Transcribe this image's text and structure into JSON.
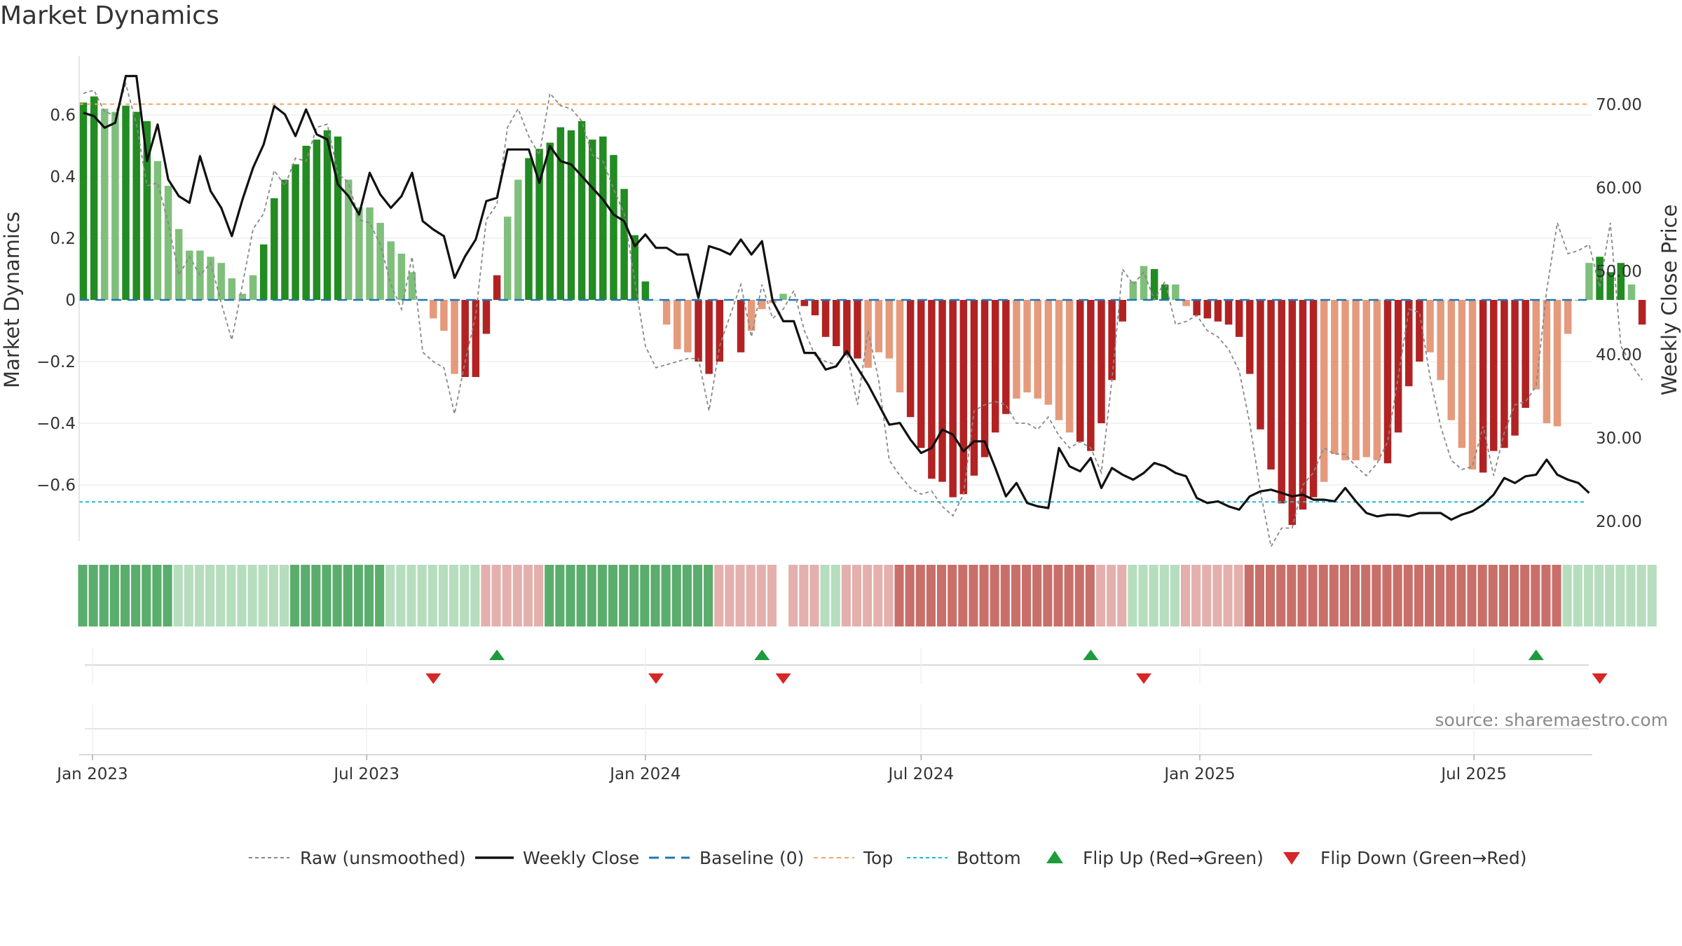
{
  "title": "Market Dynamics",
  "source": "source: sharemaestro.com",
  "colors": {
    "strong_up": "#228b22",
    "weak_up": "#7fbf7b",
    "strong_down": "#b22222",
    "weak_down": "#e59a7c",
    "raw_line": "#888888",
    "price_line": "#111111",
    "baseline": "#1f77b4",
    "top": "#f4a460",
    "bottom": "#17becf",
    "flip_up": "#1e9b3c",
    "flip_down": "#d62728"
  },
  "chart_data": {
    "type": "bar",
    "ylabel": "Market Dynamics",
    "y2label": "Weekly Close Price",
    "ylim": [
      -0.78,
      0.78
    ],
    "y2lim": [
      16,
      81
    ],
    "top_level": 0.635,
    "bottom_level": -0.655,
    "yticks": [
      0.6,
      0.4,
      0.2,
      0,
      -0.2,
      -0.4,
      -0.6
    ],
    "yticklabels": [
      "0.6",
      "0.4",
      "0.2",
      "0",
      "−0.2",
      "−0.4",
      "−0.6"
    ],
    "y2ticks": [
      70,
      60,
      50,
      40,
      30,
      20
    ],
    "y2ticklabels": [
      "70.00",
      "60.00",
      "50.00",
      "40.00",
      "30.00",
      "20.00"
    ],
    "start_date": "2022-12-26",
    "x_ticks": [
      {
        "date": "2023-01-01",
        "label": "Jan 2023"
      },
      {
        "date": "2023-07-01",
        "label": "Jul 2023"
      },
      {
        "date": "2024-01-01",
        "label": "Jan 2024"
      },
      {
        "date": "2024-07-01",
        "label": "Jul 2024"
      },
      {
        "date": "2025-01-01",
        "label": "Jan 2025"
      },
      {
        "date": "2025-07-01",
        "label": "Jul 2025"
      }
    ],
    "bar_color_codes": "SSWWSSSWWWWWWWWWWSSSSSSSSWWWWWWWWWWWDDDDWWSSSSSSSSSSSSWWWWDDDDDWWWWWDDDDDDWWWWDDDDDDDDDDWWWWWWDDDDDWWSSWWDDDDDDDDDDDDWWWWWWDDDDWWWWWDDDDDWWWWDWSSSWD",
    "smoothed": [
      0.64,
      0.66,
      0.62,
      0.61,
      0.63,
      0.61,
      0.58,
      0.45,
      0.37,
      0.23,
      0.16,
      0.16,
      0.14,
      0.12,
      0.07,
      0.02,
      0.08,
      0.18,
      0.33,
      0.39,
      0.44,
      0.5,
      0.52,
      0.55,
      0.53,
      0.39,
      0.3,
      0.3,
      0.25,
      0.19,
      0.15,
      0.09,
      0.0,
      -0.06,
      -0.1,
      -0.24,
      -0.25,
      -0.25,
      -0.11,
      0.08,
      0.27,
      0.39,
      0.46,
      0.49,
      0.51,
      0.56,
      0.55,
      0.58,
      0.52,
      0.53,
      0.47,
      0.36,
      0.21,
      0.06,
      0.0,
      -0.08,
      -0.16,
      -0.17,
      -0.2,
      -0.24,
      -0.2,
      0.0,
      -0.17,
      -0.1,
      -0.03,
      -0.01,
      0.02,
      0.0,
      -0.02,
      -0.05,
      -0.12,
      -0.15,
      -0.18,
      -0.19,
      -0.22,
      -0.17,
      -0.19,
      -0.3,
      -0.38,
      -0.48,
      -0.58,
      -0.59,
      -0.64,
      -0.63,
      -0.57,
      -0.51,
      -0.43,
      -0.37,
      -0.32,
      -0.3,
      -0.32,
      -0.34,
      -0.39,
      -0.43,
      -0.46,
      -0.49,
      -0.4,
      -0.26,
      -0.07,
      0.06,
      0.11,
      0.1,
      0.05,
      0.05,
      -0.02,
      -0.05,
      -0.06,
      -0.07,
      -0.08,
      -0.12,
      -0.24,
      -0.42,
      -0.55,
      -0.66,
      -0.73,
      -0.68,
      -0.64,
      -0.59,
      -0.5,
      -0.52,
      -0.52,
      -0.51,
      -0.52,
      -0.53,
      -0.43,
      -0.28,
      -0.2,
      -0.17,
      -0.26,
      -0.39,
      -0.48,
      -0.55,
      -0.56,
      -0.49,
      -0.48,
      -0.44,
      -0.35,
      -0.29,
      -0.4,
      -0.41,
      -0.11,
      0.0,
      0.12,
      0.14,
      0.09,
      0.12,
      0.05,
      -0.08
    ],
    "raw": [
      0.67,
      0.68,
      0.61,
      0.6,
      0.7,
      0.57,
      0.37,
      0.38,
      0.25,
      0.08,
      0.14,
      0.08,
      0.12,
      -0.01,
      -0.13,
      0.05,
      0.23,
      0.28,
      0.42,
      0.37,
      0.46,
      0.45,
      0.56,
      0.57,
      0.41,
      0.38,
      0.26,
      0.25,
      0.18,
      0.05,
      -0.03,
      0.14,
      -0.17,
      -0.2,
      -0.22,
      -0.37,
      -0.2,
      -0.05,
      0.26,
      0.31,
      0.56,
      0.62,
      0.53,
      0.47,
      0.67,
      0.63,
      0.62,
      0.58,
      0.47,
      0.45,
      0.36,
      0.28,
      0.06,
      -0.15,
      -0.22,
      -0.21,
      -0.2,
      -0.19,
      -0.19,
      -0.36,
      -0.15,
      -0.05,
      0.05,
      -0.12,
      0.05,
      -0.06,
      -0.03,
      0.03,
      -0.1,
      -0.18,
      -0.2,
      -0.21,
      -0.17,
      -0.34,
      -0.1,
      -0.26,
      -0.52,
      -0.57,
      -0.61,
      -0.63,
      -0.62,
      -0.67,
      -0.7,
      -0.63,
      -0.36,
      -0.34,
      -0.33,
      -0.34,
      -0.4,
      -0.4,
      -0.42,
      -0.38,
      -0.44,
      -0.48,
      -0.46,
      -0.48,
      -0.56,
      -0.26,
      0.1,
      0.05,
      0.09,
      0.0,
      0.06,
      -0.08,
      -0.07,
      -0.05,
      -0.1,
      -0.12,
      -0.16,
      -0.23,
      -0.4,
      -0.62,
      -0.8,
      -0.74,
      -0.74,
      -0.6,
      -0.56,
      -0.48,
      -0.5,
      -0.5,
      -0.54,
      -0.57,
      -0.53,
      -0.46,
      -0.25,
      -0.03,
      -0.04,
      -0.25,
      -0.41,
      -0.52,
      -0.55,
      -0.54,
      -0.41,
      -0.57,
      -0.43,
      -0.34,
      -0.33,
      -0.28,
      0.03,
      0.25,
      0.15,
      0.16,
      0.18,
      0.04,
      0.25,
      -0.15,
      -0.21,
      -0.26
    ],
    "price": [
      69,
      68.6,
      67.2,
      67.8,
      73.4,
      73.4,
      63.2,
      67.6,
      61,
      59,
      58.2,
      63.8,
      59.6,
      57.6,
      54.2,
      58.6,
      62.4,
      65.2,
      69.8,
      68.8,
      66.2,
      69.4,
      66.4,
      65.8,
      60.4,
      59,
      56.8,
      61.8,
      59.2,
      57.6,
      59,
      61.8,
      56,
      55,
      54.2,
      49.2,
      51.8,
      53.8,
      58.4,
      58.8,
      64.6,
      64.6,
      64.6,
      60.6,
      65,
      63.2,
      62.8,
      61.4,
      60,
      58.6,
      56.8,
      56,
      53,
      54.4,
      52.8,
      52.8,
      52,
      52,
      46.8,
      53,
      52.6,
      52,
      53.8,
      52,
      53.6,
      46.4,
      44,
      44,
      40.2,
      40.2,
      38.2,
      38.6,
      40.4,
      38.4,
      36.4,
      34,
      31.6,
      31.8,
      29.8,
      28.2,
      28.8,
      31,
      30.4,
      28.4,
      29.6,
      29.6,
      26.4,
      23,
      24.6,
      22.2,
      21.8,
      21.6,
      28.8,
      26.6,
      26,
      27.6,
      24,
      26.4,
      25.6,
      25,
      25.8,
      27,
      26.6,
      25.8,
      25.4,
      22.8,
      22.2,
      22.4,
      21.8,
      21.4,
      23,
      23.6,
      23.8,
      23.4,
      23,
      23.2,
      22.6,
      22.6,
      22.4,
      24,
      22.4,
      21,
      20.6,
      20.8,
      20.8,
      20.6,
      21,
      21,
      21,
      20.2,
      20.8,
      21.2,
      22,
      23.2,
      25.2,
      24.6,
      25.4,
      25.6,
      27.4,
      25.6,
      25,
      24.6,
      23.4
    ],
    "strip_codes": "GGGGGGGGGgggggggggggGGGGGGGGGgggggggggrrrrrrGGGGGGGGGGGGGGGGrrrrrr_rrrggrrrrrRRRRRRRRRRRRRRRRRRRrrrgggggrrrrrrRRRRRRRRRRRRRRRRRRRRRRRRRRRRRRggggggggg",
    "flips_up": [
      39,
      64,
      95,
      137
    ],
    "flips_down": [
      33,
      54,
      66,
      100,
      143
    ]
  },
  "legend": [
    {
      "key": "raw",
      "label": "Raw (unsmoothed)"
    },
    {
      "key": "price",
      "label": "Weekly Close"
    },
    {
      "key": "baseline",
      "label": "Baseline (0)"
    },
    {
      "key": "top",
      "label": "Top"
    },
    {
      "key": "bottom",
      "label": "Bottom"
    },
    {
      "key": "flip_up",
      "label": "Flip Up (Red→Green)"
    },
    {
      "key": "flip_down",
      "label": "Flip Down (Green→Red)"
    }
  ]
}
